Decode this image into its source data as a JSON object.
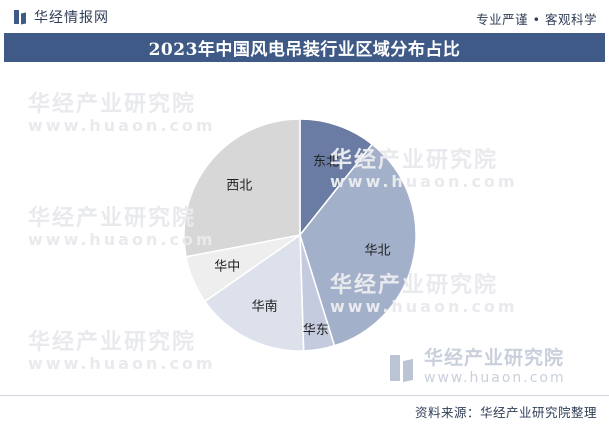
{
  "header": {
    "brand": "华经情报网",
    "tagline": "专业严谨 • 客观科学"
  },
  "title": "2023年中国风电吊装行业区域分布占比",
  "watermark": {
    "text": "华经产业研究院",
    "url": "www.huaon.com"
  },
  "footer": {
    "source": "资料来源：华经产业研究院整理"
  },
  "colors": {
    "header_bar": "#3f5a86",
    "background": "#ffffff"
  },
  "chart_data": {
    "type": "pie",
    "title": "2023年中国风电吊装行业区域分布占比",
    "start_angle_deg": 0,
    "direction": "clockwise",
    "legend": "none",
    "slices": [
      {
        "label": "东北",
        "value": 10.7,
        "color": "#6a7ca3"
      },
      {
        "label": "华北",
        "value": 34.5,
        "color": "#a3b0ca"
      },
      {
        "label": "华东",
        "value": 4.3,
        "color": "#c4cbde"
      },
      {
        "label": "华南",
        "value": 15.8,
        "color": "#dde1eb"
      },
      {
        "label": "华中",
        "value": 6.7,
        "color": "#eeeeee"
      },
      {
        "label": "西北",
        "value": 28.0,
        "color": "#d7d7d7"
      }
    ]
  }
}
